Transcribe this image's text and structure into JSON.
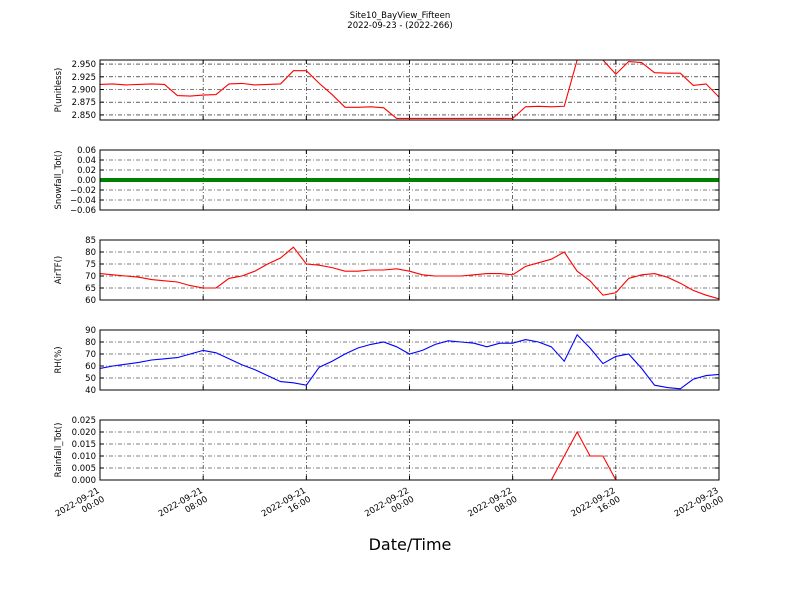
{
  "chart_data": [
    {
      "type": "line",
      "title": "Site10_BayView_Fifteen",
      "subtitle": "2022-09-23 - (2022-266)",
      "ylabel": "P(unitless)",
      "color": "#ff0000",
      "ylim": [
        2.84,
        2.958
      ],
      "yticks": [
        {
          "value": 2.85,
          "label": "2.850"
        },
        {
          "value": 2.875,
          "label": "2.875"
        },
        {
          "value": 2.9,
          "label": "2.900"
        },
        {
          "value": 2.925,
          "label": "2.925"
        },
        {
          "value": 2.95,
          "label": "2.950"
        }
      ],
      "x": [
        "2022-09-21 00:00",
        "2022-09-21 01:00",
        "2022-09-21 02:00",
        "2022-09-21 03:00",
        "2022-09-21 04:00",
        "2022-09-21 05:00",
        "2022-09-21 06:00",
        "2022-09-21 07:00",
        "2022-09-21 08:00",
        "2022-09-21 09:00",
        "2022-09-21 10:00",
        "2022-09-21 11:00",
        "2022-09-21 12:00",
        "2022-09-21 13:00",
        "2022-09-21 14:00",
        "2022-09-21 15:00",
        "2022-09-21 16:00",
        "2022-09-21 17:00",
        "2022-09-21 18:00",
        "2022-09-21 19:00",
        "2022-09-21 20:00",
        "2022-09-21 21:00",
        "2022-09-21 22:00",
        "2022-09-21 23:00",
        "2022-09-22 00:00",
        "2022-09-22 01:00",
        "2022-09-22 02:00",
        "2022-09-22 03:00",
        "2022-09-22 04:00",
        "2022-09-22 05:00",
        "2022-09-22 06:00",
        "2022-09-22 07:00",
        "2022-09-22 08:00",
        "2022-09-22 09:00",
        "2022-09-22 10:00",
        "2022-09-22 11:00",
        "2022-09-22 12:00",
        "2022-09-22 13:00",
        "2022-09-22 14:00",
        "2022-09-22 15:00",
        "2022-09-22 16:00",
        "2022-09-22 17:00",
        "2022-09-22 18:00",
        "2022-09-22 19:00",
        "2022-09-22 20:00",
        "2022-09-22 21:00",
        "2022-09-22 22:00",
        "2022-09-22 23:00",
        "2022-09-23 00:00"
      ],
      "values": [
        2.91,
        2.911,
        2.909,
        2.91,
        2.911,
        2.91,
        2.888,
        2.887,
        2.889,
        2.89,
        2.911,
        2.912,
        2.909,
        2.91,
        2.911,
        2.937,
        2.937,
        2.912,
        2.89,
        2.865,
        2.865,
        2.866,
        2.864,
        2.843,
        2.843,
        2.843,
        2.843,
        2.843,
        2.843,
        2.843,
        2.843,
        2.843,
        2.843,
        2.866,
        2.867,
        2.866,
        2.867,
        2.958,
        2.958,
        2.958,
        2.93,
        2.955,
        2.953,
        2.933,
        2.932,
        2.932,
        2.908,
        2.911,
        2.885
      ]
    },
    {
      "type": "line",
      "ylabel": "Snowfall_Tot()",
      "color": "#008000",
      "ylim": [
        -0.06,
        0.06
      ],
      "yticks": [
        {
          "value": -0.06,
          "label": "−0.06"
        },
        {
          "value": -0.04,
          "label": "−0.04"
        },
        {
          "value": -0.02,
          "label": "−0.02"
        },
        {
          "value": 0,
          "label": "0.00"
        },
        0.02,
        0.04,
        0.06
      ],
      "x": [
        "2022-09-21 00:00",
        "2022-09-21 01:00",
        "2022-09-21 02:00",
        "2022-09-21 03:00",
        "2022-09-21 04:00",
        "2022-09-21 05:00",
        "2022-09-21 06:00",
        "2022-09-21 07:00",
        "2022-09-21 08:00",
        "2022-09-21 09:00",
        "2022-09-21 10:00",
        "2022-09-21 11:00",
        "2022-09-21 12:00",
        "2022-09-21 13:00",
        "2022-09-21 14:00",
        "2022-09-21 15:00",
        "2022-09-21 16:00",
        "2022-09-21 17:00",
        "2022-09-21 18:00",
        "2022-09-21 19:00",
        "2022-09-21 20:00",
        "2022-09-21 21:00",
        "2022-09-21 22:00",
        "2022-09-21 23:00",
        "2022-09-22 00:00",
        "2022-09-22 01:00",
        "2022-09-22 02:00",
        "2022-09-22 03:00",
        "2022-09-22 04:00",
        "2022-09-22 05:00",
        "2022-09-22 06:00",
        "2022-09-22 07:00",
        "2022-09-22 08:00",
        "2022-09-22 09:00",
        "2022-09-22 10:00",
        "2022-09-22 11:00",
        "2022-09-22 12:00",
        "2022-09-22 13:00",
        "2022-09-22 14:00",
        "2022-09-22 15:00",
        "2022-09-22 16:00",
        "2022-09-22 17:00",
        "2022-09-22 18:00",
        "2022-09-22 19:00",
        "2022-09-22 20:00",
        "2022-09-22 21:00",
        "2022-09-22 22:00",
        "2022-09-22 23:00",
        "2022-09-23 00:00"
      ],
      "values": [
        0,
        0,
        0,
        0,
        0,
        0,
        0,
        0,
        0,
        0,
        0,
        0,
        0,
        0,
        0,
        0,
        0,
        0,
        0,
        0,
        0,
        0,
        0,
        0,
        0,
        0,
        0,
        0,
        0,
        0,
        0,
        0,
        0,
        0,
        0,
        0,
        0,
        0,
        0,
        0,
        0,
        0,
        0,
        0,
        0,
        0,
        0,
        0,
        0
      ]
    },
    {
      "type": "line",
      "ylabel": "AirTF()",
      "color": "#ff0000",
      "ylim": [
        60,
        85
      ],
      "yticks": [
        60,
        65,
        70,
        75,
        80,
        85
      ],
      "x": [
        "2022-09-21 00:00",
        "2022-09-21 01:00",
        "2022-09-21 02:00",
        "2022-09-21 03:00",
        "2022-09-21 04:00",
        "2022-09-21 05:00",
        "2022-09-21 06:00",
        "2022-09-21 07:00",
        "2022-09-21 08:00",
        "2022-09-21 09:00",
        "2022-09-21 10:00",
        "2022-09-21 11:00",
        "2022-09-21 12:00",
        "2022-09-21 13:00",
        "2022-09-21 14:00",
        "2022-09-21 15:00",
        "2022-09-21 16:00",
        "2022-09-21 17:00",
        "2022-09-21 18:00",
        "2022-09-21 19:00",
        "2022-09-21 20:00",
        "2022-09-21 21:00",
        "2022-09-21 22:00",
        "2022-09-21 23:00",
        "2022-09-22 00:00",
        "2022-09-22 01:00",
        "2022-09-22 02:00",
        "2022-09-22 03:00",
        "2022-09-22 04:00",
        "2022-09-22 05:00",
        "2022-09-22 06:00",
        "2022-09-22 07:00",
        "2022-09-22 08:00",
        "2022-09-22 09:00",
        "2022-09-22 10:00",
        "2022-09-22 11:00",
        "2022-09-22 12:00",
        "2022-09-22 13:00",
        "2022-09-22 14:00",
        "2022-09-22 15:00",
        "2022-09-22 16:00",
        "2022-09-22 17:00",
        "2022-09-22 18:00",
        "2022-09-22 19:00",
        "2022-09-22 20:00",
        "2022-09-22 21:00",
        "2022-09-22 22:00",
        "2022-09-22 23:00",
        "2022-09-23 00:00"
      ],
      "values": [
        71,
        70.5,
        70,
        69.5,
        68.5,
        68,
        67.5,
        66,
        65,
        65,
        69,
        70,
        72,
        75,
        77.5,
        82,
        75,
        74.5,
        73.5,
        72,
        72,
        72.5,
        72.5,
        73,
        72,
        70.5,
        70,
        70,
        70,
        70.5,
        71,
        71,
        70.5,
        74,
        75.5,
        77,
        80,
        72,
        68,
        62,
        63,
        69,
        70.5,
        71,
        69.5,
        67,
        64,
        62,
        60.5
      ]
    },
    {
      "type": "line",
      "ylabel": "RH(%)",
      "color": "#0000ff",
      "ylim": [
        40,
        90
      ],
      "yticks": [
        40,
        50,
        60,
        70,
        80,
        90
      ],
      "x": [
        "2022-09-21 00:00",
        "2022-09-21 01:00",
        "2022-09-21 02:00",
        "2022-09-21 03:00",
        "2022-09-21 04:00",
        "2022-09-21 05:00",
        "2022-09-21 06:00",
        "2022-09-21 07:00",
        "2022-09-21 08:00",
        "2022-09-21 09:00",
        "2022-09-21 10:00",
        "2022-09-21 11:00",
        "2022-09-21 12:00",
        "2022-09-21 13:00",
        "2022-09-21 14:00",
        "2022-09-21 15:00",
        "2022-09-21 16:00",
        "2022-09-21 17:00",
        "2022-09-21 18:00",
        "2022-09-21 19:00",
        "2022-09-21 20:00",
        "2022-09-21 21:00",
        "2022-09-21 22:00",
        "2022-09-21 23:00",
        "2022-09-22 00:00",
        "2022-09-22 01:00",
        "2022-09-22 02:00",
        "2022-09-22 03:00",
        "2022-09-22 04:00",
        "2022-09-22 05:00",
        "2022-09-22 06:00",
        "2022-09-22 07:00",
        "2022-09-22 08:00",
        "2022-09-22 09:00",
        "2022-09-22 10:00",
        "2022-09-22 11:00",
        "2022-09-22 12:00",
        "2022-09-22 13:00",
        "2022-09-22 14:00",
        "2022-09-22 15:00",
        "2022-09-22 16:00",
        "2022-09-22 17:00",
        "2022-09-22 18:00",
        "2022-09-22 19:00",
        "2022-09-22 20:00",
        "2022-09-22 21:00",
        "2022-09-22 22:00",
        "2022-09-22 23:00",
        "2022-09-23 00:00"
      ],
      "values": [
        58,
        60,
        61.5,
        63,
        65,
        66,
        67,
        70,
        73,
        71,
        66,
        61,
        57,
        52,
        47,
        46,
        44,
        59,
        64,
        70,
        75,
        78,
        80,
        76,
        70,
        73,
        78,
        81,
        80,
        79,
        76,
        79,
        79,
        82,
        80,
        76,
        64,
        86,
        75,
        62,
        68,
        70,
        58,
        44,
        42,
        41,
        49,
        52,
        53
      ]
    },
    {
      "type": "line",
      "ylabel": "Rainfall_Tot()",
      "xlabel": "Date/Time",
      "color": "#ff0000",
      "ylim": [
        0,
        0.025
      ],
      "yticks": [
        {
          "value": 0,
          "label": "0.000"
        },
        0.005,
        {
          "value": 0.01,
          "label": "0.010"
        },
        0.015,
        {
          "value": 0.02,
          "label": "0.020"
        },
        0.025
      ],
      "xlim": [
        "2022-09-21 00:00",
        "2022-09-23 00:00"
      ],
      "xticks": [
        {
          "value": "2022-09-21 00:00",
          "label": [
            "2022-09-21",
            "00:00"
          ]
        },
        {
          "value": "2022-09-21 08:00",
          "label": [
            "2022-09-21",
            "08:00"
          ]
        },
        {
          "value": "2022-09-21 16:00",
          "label": [
            "2022-09-21",
            "16:00"
          ]
        },
        {
          "value": "2022-09-22 00:00",
          "label": [
            "2022-09-22",
            "00:00"
          ]
        },
        {
          "value": "2022-09-22 08:00",
          "label": [
            "2022-09-22",
            "08:00"
          ]
        },
        {
          "value": "2022-09-22 16:00",
          "label": [
            "2022-09-22",
            "16:00"
          ]
        },
        {
          "value": "2022-09-23 00:00",
          "label": [
            "2022-09-23",
            "00:00"
          ]
        }
      ],
      "x": [
        "2022-09-21 00:00",
        "2022-09-21 01:00",
        "2022-09-21 02:00",
        "2022-09-21 03:00",
        "2022-09-21 04:00",
        "2022-09-21 05:00",
        "2022-09-21 06:00",
        "2022-09-21 07:00",
        "2022-09-21 08:00",
        "2022-09-21 09:00",
        "2022-09-21 10:00",
        "2022-09-21 11:00",
        "2022-09-21 12:00",
        "2022-09-21 13:00",
        "2022-09-21 14:00",
        "2022-09-21 15:00",
        "2022-09-21 16:00",
        "2022-09-21 17:00",
        "2022-09-21 18:00",
        "2022-09-21 19:00",
        "2022-09-21 20:00",
        "2022-09-21 21:00",
        "2022-09-21 22:00",
        "2022-09-21 23:00",
        "2022-09-22 00:00",
        "2022-09-22 01:00",
        "2022-09-22 02:00",
        "2022-09-22 03:00",
        "2022-09-22 04:00",
        "2022-09-22 05:00",
        "2022-09-22 06:00",
        "2022-09-22 07:00",
        "2022-09-22 08:00",
        "2022-09-22 09:00",
        "2022-09-22 10:00",
        "2022-09-22 11:00",
        "2022-09-22 12:00",
        "2022-09-22 13:00",
        "2022-09-22 14:00",
        "2022-09-22 15:00",
        "2022-09-22 16:00",
        "2022-09-22 17:00",
        "2022-09-22 18:00",
        "2022-09-22 19:00",
        "2022-09-22 20:00",
        "2022-09-22 21:00",
        "2022-09-22 22:00",
        "2022-09-22 23:00",
        "2022-09-23 00:00"
      ],
      "values": [
        0,
        0,
        0,
        0,
        0,
        0,
        0,
        0,
        0,
        0,
        0,
        0,
        0,
        0,
        0,
        0,
        0,
        0,
        0,
        0,
        0,
        0,
        0,
        0,
        0,
        0,
        0,
        0,
        0,
        0,
        0,
        0,
        0,
        0,
        0,
        0,
        0.01,
        0.02,
        0.01,
        0.01,
        0,
        0,
        0,
        0,
        0,
        0,
        0,
        0,
        0
      ]
    }
  ]
}
